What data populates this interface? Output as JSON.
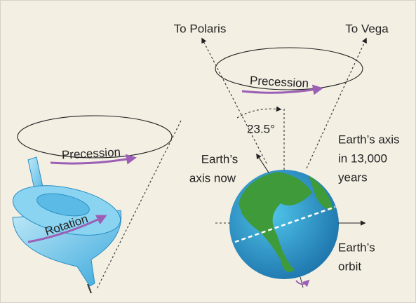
{
  "spinning_top": {
    "precession": "Precession",
    "rotation": "Rotation"
  },
  "earth": {
    "to_polaris": "To Polaris",
    "to_vega": "To Vega",
    "precession": "Precession",
    "angle": "23.5°",
    "axis_now": [
      "Earth’s",
      "axis now"
    ],
    "axis_future": [
      "Earth’s axis",
      "in 13,000",
      "years"
    ],
    "orbit": [
      "Earth’s",
      "orbit"
    ]
  }
}
